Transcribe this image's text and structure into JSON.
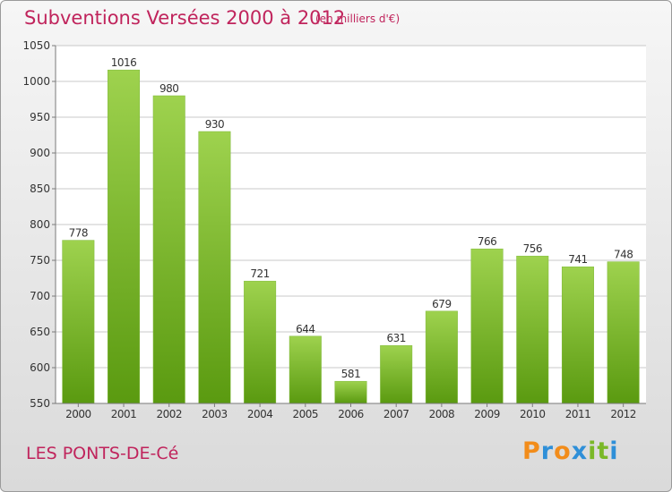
{
  "header": {
    "title": "Subventions Versées 2000 à 2012",
    "subtitle": "(en milliers d'€)"
  },
  "footer": {
    "location": "LES PONTS-DE-Cé",
    "brand": "Proxiti",
    "brand_colors": [
      "#f28c1a",
      "#2e8fd8",
      "#f28c1a",
      "#2e8fd8",
      "#7ab828",
      "#7ab828",
      "#2e8fd8"
    ]
  },
  "colors": {
    "title": "#c0245c",
    "bar_light": "#9ed24e",
    "bar_dark": "#5a9a10",
    "grid": "#c8c8c8",
    "axis": "#7a7a7a",
    "text": "#333333"
  },
  "chart_data": {
    "type": "bar",
    "categories": [
      "2000",
      "2001",
      "2002",
      "2003",
      "2004",
      "2005",
      "2006",
      "2007",
      "2008",
      "2009",
      "2010",
      "2011",
      "2012"
    ],
    "values": [
      778,
      1016,
      980,
      930,
      721,
      644,
      581,
      631,
      679,
      766,
      756,
      741,
      748
    ],
    "data_labels": [
      "778",
      "1016",
      "980",
      "930",
      "721",
      "644",
      "581",
      "631",
      "679",
      "766",
      "756",
      "741",
      "748"
    ],
    "ylim": [
      550,
      1050
    ],
    "yticks": [
      550,
      600,
      650,
      700,
      750,
      800,
      850,
      900,
      950,
      1000,
      1050
    ],
    "ytick_labels": [
      "550",
      "600",
      "650",
      "700",
      "750",
      "800",
      "850",
      "900",
      "950",
      "1000",
      "1050"
    ],
    "grid": true,
    "legend": "none"
  }
}
